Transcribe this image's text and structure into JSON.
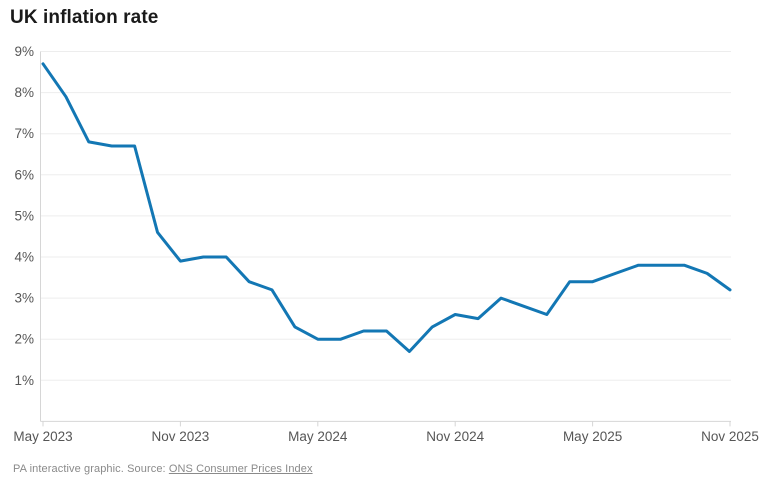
{
  "header": {
    "title": "UK inflation rate"
  },
  "footer": {
    "prefix": "PA interactive graphic. Source: ",
    "source_link_text": "ONS Consumer Prices Index"
  },
  "chart_data": {
    "type": "line",
    "title": "UK inflation rate",
    "xlabel": "",
    "ylabel": "",
    "ylim": [
      0,
      9
    ],
    "grid": true,
    "legend_position": "none",
    "line_color": "#1377b4",
    "grid_color": "#ededed",
    "axis_color": "#d6d6d6",
    "label_color": "#565656",
    "x": [
      "May 2023",
      "Jun 2023",
      "Jul 2023",
      "Aug 2023",
      "Sep 2023",
      "Oct 2023",
      "Nov 2023",
      "Dec 2023",
      "Jan 2024",
      "Feb 2024",
      "Mar 2024",
      "Apr 2024",
      "May 2024",
      "Jun 2024",
      "Jul 2024",
      "Aug 2024",
      "Sep 2024",
      "Oct 2024",
      "Nov 2024",
      "Dec 2024",
      "Jan 2025",
      "Feb 2025",
      "Mar 2025",
      "Apr 2025",
      "May 2025",
      "Jun 2025",
      "Jul 2025",
      "Aug 2025",
      "Sep 2025",
      "Oct 2025",
      "Nov 2025"
    ],
    "values": [
      8.7,
      7.9,
      6.8,
      6.7,
      6.7,
      4.6,
      3.9,
      4.0,
      4.0,
      3.4,
      3.2,
      2.3,
      2.0,
      2.0,
      2.2,
      2.2,
      1.7,
      2.3,
      2.6,
      2.5,
      3.0,
      2.8,
      2.6,
      3.4,
      3.4,
      3.6,
      3.8,
      3.8,
      3.8,
      3.6,
      3.2
    ],
    "series_name": "UK inflation rate (%)",
    "y_ticks": [
      {
        "value": 9,
        "label": "9%"
      },
      {
        "value": 8,
        "label": "8%"
      },
      {
        "value": 7,
        "label": "7%"
      },
      {
        "value": 6,
        "label": "6%"
      },
      {
        "value": 5,
        "label": "5%"
      },
      {
        "value": 4,
        "label": "4%"
      },
      {
        "value": 3,
        "label": "3%"
      },
      {
        "value": 2,
        "label": "2%"
      },
      {
        "value": 1,
        "label": "1%"
      }
    ],
    "x_ticks": [
      {
        "index": 0,
        "label": "May 2023"
      },
      {
        "index": 6,
        "label": "Nov 2023"
      },
      {
        "index": 12,
        "label": "May 2024"
      },
      {
        "index": 18,
        "label": "Nov 2024"
      },
      {
        "index": 24,
        "label": "May 2025"
      },
      {
        "index": 30,
        "label": "Nov 2025"
      }
    ]
  }
}
